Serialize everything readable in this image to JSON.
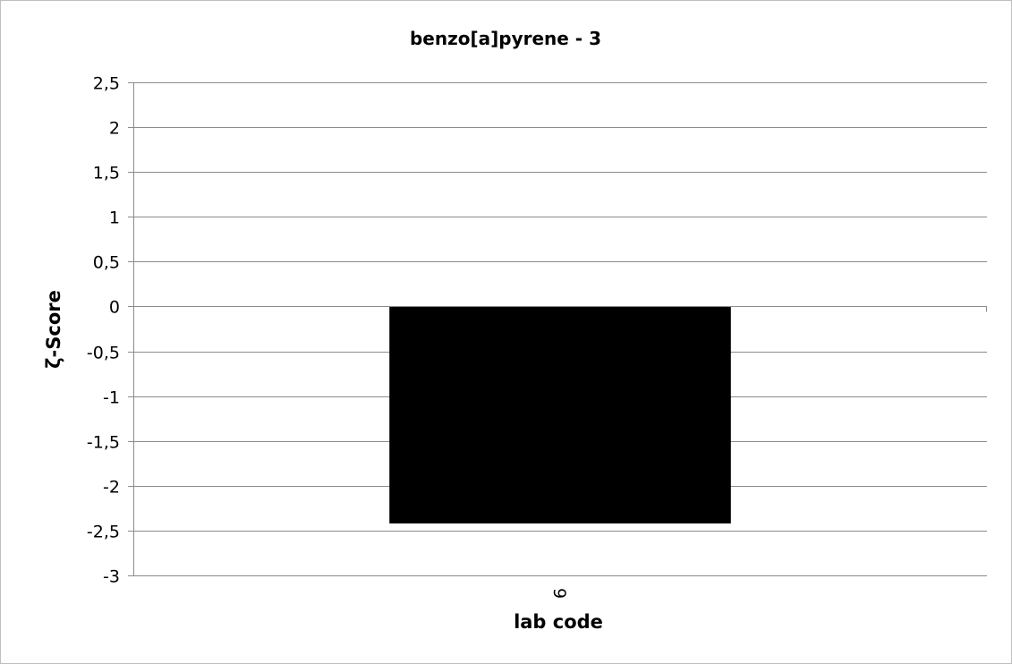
{
  "chart_data": {
    "type": "bar",
    "title": "benzo[a]pyrene - 3",
    "xlabel": "lab code",
    "ylabel": "ζ-Score",
    "categories": [
      "9"
    ],
    "values": [
      -2.42
    ],
    "ylim": [
      -3,
      2.5
    ],
    "yticks": [
      2.5,
      2,
      1.5,
      1,
      0.5,
      0,
      -0.5,
      -1,
      -1.5,
      -2,
      -2.5,
      -3
    ],
    "ytick_labels": [
      "2,5",
      "2",
      "1,5",
      "1",
      "0,5",
      "0",
      "-0,5",
      "-1",
      "-1,5",
      "-2",
      "-2,5",
      "-3"
    ],
    "grid": true,
    "bar_color": "#000000",
    "legend": "none"
  }
}
